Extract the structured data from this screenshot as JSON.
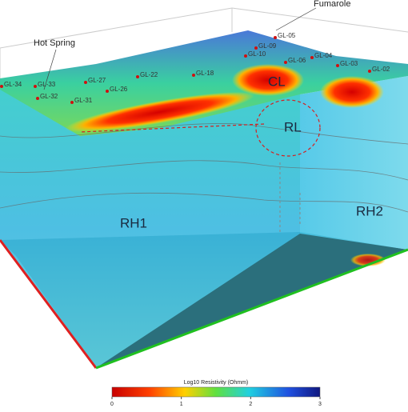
{
  "annotations": {
    "fumarole": "Fumarole",
    "hot_spring": "Hot Spring",
    "cl": "CL",
    "rl": "RL",
    "rh1": "RH1",
    "rh2": "RH2"
  },
  "stations": [
    "GL-34",
    "GL-33",
    "GL-32",
    "GL-31",
    "GL-27",
    "GL-26",
    "GL-22",
    "GL-18",
    "GL-05",
    "GL-09",
    "GL-10",
    "GL-06",
    "GL-04",
    "GL-03",
    "GL-02"
  ],
  "colorbar": {
    "title": "Log10 Resistivity (Ohmm)",
    "lim": [
      0,
      3
    ],
    "ticks": [
      0,
      1,
      2,
      3
    ]
  }
}
